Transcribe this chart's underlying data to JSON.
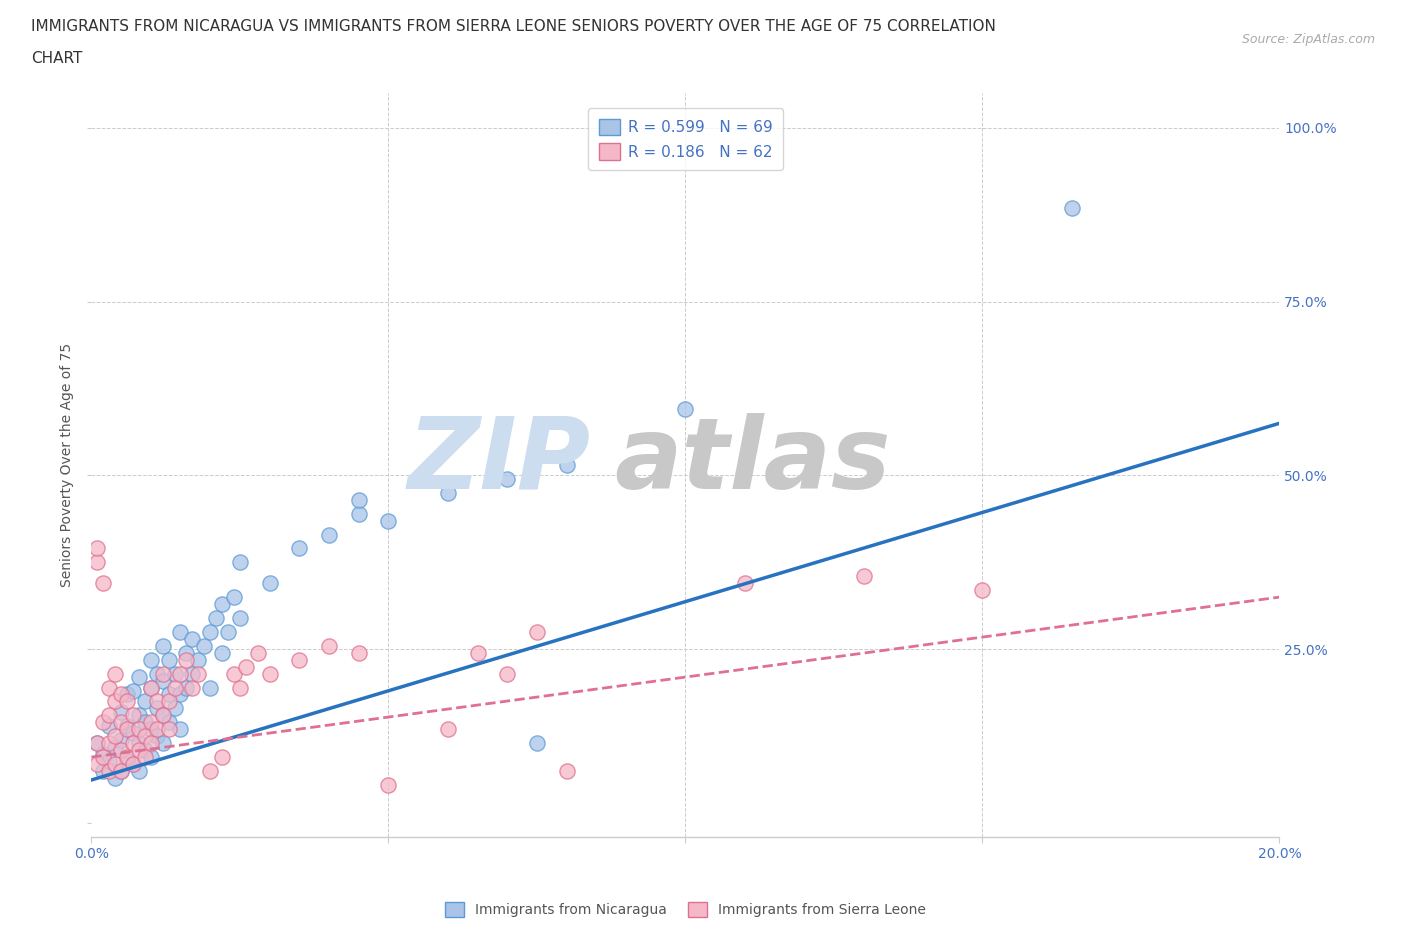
{
  "title_line1": "IMMIGRANTS FROM NICARAGUA VS IMMIGRANTS FROM SIERRA LEONE SENIORS POVERTY OVER THE AGE OF 75 CORRELATION",
  "title_line2": "CHART",
  "source": "Source: ZipAtlas.com",
  "ylabel": "Seniors Poverty Over the Age of 75",
  "xlim": [
    0.0,
    0.2
  ],
  "ylim": [
    -0.02,
    1.05
  ],
  "nicaragua_color": "#aac4e8",
  "nicaragua_edge_color": "#5b9bd5",
  "sierra_leone_color": "#f4b8c8",
  "sierra_leone_edge_color": "#e07090",
  "nicaragua_line_color": "#2873c0",
  "sierra_leone_line_color": "#e07090",
  "r_nicaragua": "0.599",
  "n_nicaragua": "69",
  "r_sierra_leone": "0.186",
  "n_sierra_leone": "62",
  "legend_label_1": "Immigrants from Nicaragua",
  "legend_label_2": "Immigrants from Sierra Leone",
  "background_color": "#ffffff",
  "grid_color": "#cccccc",
  "tick_label_color": "#4472c4",
  "axis_label_color": "#555555",
  "watermark_zip_color": "#ccddf0",
  "watermark_atlas_color": "#c8c8c8",
  "nicaragua_scatter": [
    [
      0.001,
      0.115
    ],
    [
      0.002,
      0.075
    ],
    [
      0.002,
      0.1
    ],
    [
      0.003,
      0.09
    ],
    [
      0.003,
      0.14
    ],
    [
      0.004,
      0.065
    ],
    [
      0.004,
      0.11
    ],
    [
      0.005,
      0.075
    ],
    [
      0.005,
      0.12
    ],
    [
      0.005,
      0.16
    ],
    [
      0.006,
      0.09
    ],
    [
      0.006,
      0.14
    ],
    [
      0.006,
      0.185
    ],
    [
      0.007,
      0.085
    ],
    [
      0.007,
      0.13
    ],
    [
      0.007,
      0.19
    ],
    [
      0.008,
      0.075
    ],
    [
      0.008,
      0.115
    ],
    [
      0.008,
      0.155
    ],
    [
      0.008,
      0.21
    ],
    [
      0.009,
      0.105
    ],
    [
      0.009,
      0.145
    ],
    [
      0.009,
      0.175
    ],
    [
      0.01,
      0.095
    ],
    [
      0.01,
      0.135
    ],
    [
      0.01,
      0.195
    ],
    [
      0.01,
      0.235
    ],
    [
      0.011,
      0.125
    ],
    [
      0.011,
      0.165
    ],
    [
      0.011,
      0.215
    ],
    [
      0.012,
      0.115
    ],
    [
      0.012,
      0.155
    ],
    [
      0.012,
      0.205
    ],
    [
      0.012,
      0.255
    ],
    [
      0.013,
      0.145
    ],
    [
      0.013,
      0.185
    ],
    [
      0.013,
      0.235
    ],
    [
      0.014,
      0.165
    ],
    [
      0.014,
      0.215
    ],
    [
      0.015,
      0.135
    ],
    [
      0.015,
      0.185
    ],
    [
      0.015,
      0.275
    ],
    [
      0.016,
      0.195
    ],
    [
      0.016,
      0.245
    ],
    [
      0.017,
      0.215
    ],
    [
      0.017,
      0.265
    ],
    [
      0.018,
      0.235
    ],
    [
      0.019,
      0.255
    ],
    [
      0.02,
      0.195
    ],
    [
      0.02,
      0.275
    ],
    [
      0.021,
      0.295
    ],
    [
      0.022,
      0.245
    ],
    [
      0.022,
      0.315
    ],
    [
      0.023,
      0.275
    ],
    [
      0.024,
      0.325
    ],
    [
      0.025,
      0.295
    ],
    [
      0.025,
      0.375
    ],
    [
      0.03,
      0.345
    ],
    [
      0.035,
      0.395
    ],
    [
      0.04,
      0.415
    ],
    [
      0.045,
      0.445
    ],
    [
      0.045,
      0.465
    ],
    [
      0.05,
      0.435
    ],
    [
      0.06,
      0.475
    ],
    [
      0.07,
      0.495
    ],
    [
      0.075,
      0.115
    ],
    [
      0.08,
      0.515
    ],
    [
      0.1,
      0.595
    ],
    [
      0.165,
      0.885
    ]
  ],
  "sierra_leone_scatter": [
    [
      0.001,
      0.375
    ],
    [
      0.001,
      0.395
    ],
    [
      0.001,
      0.115
    ],
    [
      0.001,
      0.085
    ],
    [
      0.002,
      0.095
    ],
    [
      0.002,
      0.145
    ],
    [
      0.002,
      0.345
    ],
    [
      0.003,
      0.075
    ],
    [
      0.003,
      0.115
    ],
    [
      0.003,
      0.155
    ],
    [
      0.003,
      0.195
    ],
    [
      0.004,
      0.085
    ],
    [
      0.004,
      0.125
    ],
    [
      0.004,
      0.175
    ],
    [
      0.004,
      0.215
    ],
    [
      0.005,
      0.075
    ],
    [
      0.005,
      0.105
    ],
    [
      0.005,
      0.145
    ],
    [
      0.005,
      0.185
    ],
    [
      0.006,
      0.095
    ],
    [
      0.006,
      0.135
    ],
    [
      0.006,
      0.175
    ],
    [
      0.007,
      0.085
    ],
    [
      0.007,
      0.115
    ],
    [
      0.007,
      0.155
    ],
    [
      0.008,
      0.105
    ],
    [
      0.008,
      0.135
    ],
    [
      0.009,
      0.095
    ],
    [
      0.009,
      0.125
    ],
    [
      0.01,
      0.115
    ],
    [
      0.01,
      0.145
    ],
    [
      0.01,
      0.195
    ],
    [
      0.011,
      0.135
    ],
    [
      0.011,
      0.175
    ],
    [
      0.012,
      0.155
    ],
    [
      0.012,
      0.215
    ],
    [
      0.013,
      0.135
    ],
    [
      0.013,
      0.175
    ],
    [
      0.014,
      0.195
    ],
    [
      0.015,
      0.215
    ],
    [
      0.016,
      0.235
    ],
    [
      0.017,
      0.195
    ],
    [
      0.018,
      0.215
    ],
    [
      0.02,
      0.075
    ],
    [
      0.022,
      0.095
    ],
    [
      0.024,
      0.215
    ],
    [
      0.025,
      0.195
    ],
    [
      0.026,
      0.225
    ],
    [
      0.028,
      0.245
    ],
    [
      0.03,
      0.215
    ],
    [
      0.035,
      0.235
    ],
    [
      0.04,
      0.255
    ],
    [
      0.045,
      0.245
    ],
    [
      0.05,
      0.055
    ],
    [
      0.06,
      0.135
    ],
    [
      0.065,
      0.245
    ],
    [
      0.07,
      0.215
    ],
    [
      0.075,
      0.275
    ],
    [
      0.08,
      0.075
    ],
    [
      0.11,
      0.345
    ],
    [
      0.13,
      0.355
    ],
    [
      0.15,
      0.335
    ]
  ],
  "nicaragua_trendline_x": [
    0.0,
    0.2
  ],
  "nicaragua_trendline_y": [
    0.062,
    0.575
  ],
  "sierra_leone_trendline_x": [
    0.0,
    0.2
  ],
  "sierra_leone_trendline_y": [
    0.095,
    0.325
  ]
}
